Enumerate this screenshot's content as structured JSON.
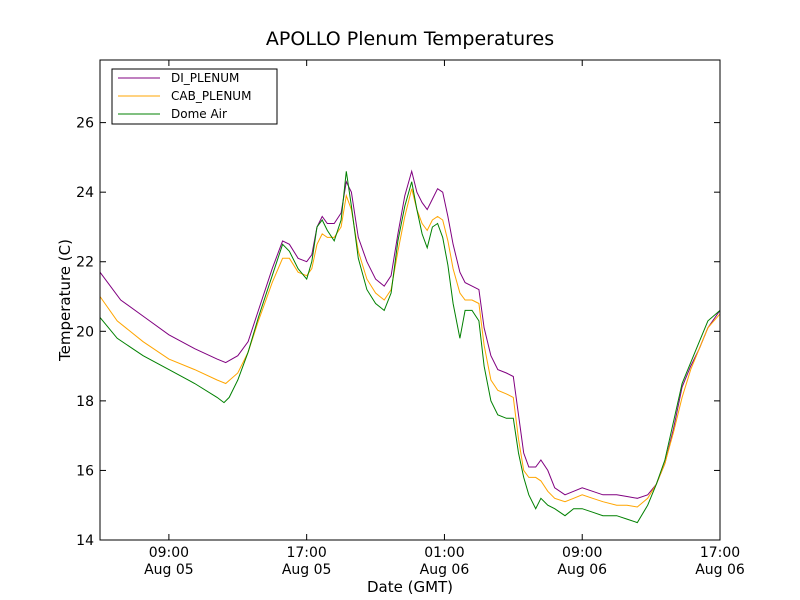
{
  "chart_data": {
    "type": "line",
    "title": "APOLLO Plenum Temperatures",
    "xlabel": "Date (GMT)",
    "ylabel": "Temperature (C)",
    "x_unit": "hours since Aug 05 00:00 GMT",
    "xlim": [
      5.0,
      41.0
    ],
    "ylim": [
      14,
      27.8
    ],
    "yticks": [
      14,
      16,
      18,
      20,
      22,
      24,
      26
    ],
    "xticks": [
      {
        "x": 9,
        "time": "09:00",
        "date": "Aug 05"
      },
      {
        "x": 17,
        "time": "17:00",
        "date": "Aug 05"
      },
      {
        "x": 25,
        "time": "01:00",
        "date": "Aug 06"
      },
      {
        "x": 33,
        "time": "09:00",
        "date": "Aug 06"
      },
      {
        "x": 41,
        "time": "17:00",
        "date": "Aug 06"
      }
    ],
    "legend_position": "top-left",
    "series": [
      {
        "name": "DI_PLENUM",
        "color": "#800080",
        "points": [
          [
            5.0,
            21.7
          ],
          [
            6.2,
            20.9
          ],
          [
            7.6,
            20.4
          ],
          [
            9.0,
            19.9
          ],
          [
            10.5,
            19.5
          ],
          [
            11.8,
            19.2
          ],
          [
            12.3,
            19.1
          ],
          [
            13.0,
            19.3
          ],
          [
            13.6,
            19.7
          ],
          [
            14.2,
            20.6
          ],
          [
            15.0,
            21.8
          ],
          [
            15.6,
            22.6
          ],
          [
            16.0,
            22.5
          ],
          [
            16.5,
            22.1
          ],
          [
            17.0,
            22.0
          ],
          [
            17.3,
            22.2
          ],
          [
            17.6,
            23.0
          ],
          [
            17.9,
            23.3
          ],
          [
            18.2,
            23.1
          ],
          [
            18.6,
            23.1
          ],
          [
            19.0,
            23.4
          ],
          [
            19.3,
            24.3
          ],
          [
            19.6,
            24.0
          ],
          [
            20.0,
            22.7
          ],
          [
            20.5,
            22.0
          ],
          [
            21.0,
            21.5
          ],
          [
            21.5,
            21.3
          ],
          [
            21.9,
            21.6
          ],
          [
            22.3,
            22.8
          ],
          [
            22.7,
            23.9
          ],
          [
            23.1,
            24.6
          ],
          [
            23.4,
            24.0
          ],
          [
            23.7,
            23.7
          ],
          [
            24.0,
            23.5
          ],
          [
            24.3,
            23.8
          ],
          [
            24.6,
            24.1
          ],
          [
            24.9,
            24.0
          ],
          [
            25.2,
            23.3
          ],
          [
            25.5,
            22.5
          ],
          [
            25.9,
            21.7
          ],
          [
            26.2,
            21.4
          ],
          [
            26.6,
            21.3
          ],
          [
            27.0,
            21.2
          ],
          [
            27.3,
            20.1
          ],
          [
            27.7,
            19.3
          ],
          [
            28.1,
            18.9
          ],
          [
            28.6,
            18.8
          ],
          [
            29.0,
            18.7
          ],
          [
            29.3,
            17.6
          ],
          [
            29.6,
            16.5
          ],
          [
            29.9,
            16.1
          ],
          [
            30.3,
            16.1
          ],
          [
            30.6,
            16.3
          ],
          [
            31.0,
            16.0
          ],
          [
            31.4,
            15.5
          ],
          [
            32.0,
            15.3
          ],
          [
            32.5,
            15.4
          ],
          [
            33.0,
            15.5
          ],
          [
            33.6,
            15.4
          ],
          [
            34.2,
            15.3
          ],
          [
            35.0,
            15.3
          ],
          [
            35.6,
            15.25
          ],
          [
            36.2,
            15.2
          ],
          [
            36.8,
            15.3
          ],
          [
            37.3,
            15.6
          ],
          [
            37.8,
            16.2
          ],
          [
            38.3,
            17.2
          ],
          [
            38.8,
            18.4
          ],
          [
            39.3,
            19.0
          ],
          [
            39.8,
            19.5
          ],
          [
            40.3,
            20.1
          ],
          [
            41.0,
            20.6
          ]
        ]
      },
      {
        "name": "CAB_PLENUM",
        "color": "#ffa500",
        "points": [
          [
            5.0,
            21.0
          ],
          [
            6.0,
            20.3
          ],
          [
            7.5,
            19.7
          ],
          [
            9.0,
            19.2
          ],
          [
            10.5,
            18.9
          ],
          [
            11.8,
            18.6
          ],
          [
            12.3,
            18.5
          ],
          [
            13.0,
            18.8
          ],
          [
            13.6,
            19.4
          ],
          [
            14.2,
            20.3
          ],
          [
            15.0,
            21.4
          ],
          [
            15.6,
            22.1
          ],
          [
            16.0,
            22.1
          ],
          [
            16.5,
            21.7
          ],
          [
            17.0,
            21.6
          ],
          [
            17.3,
            21.8
          ],
          [
            17.6,
            22.5
          ],
          [
            17.9,
            22.8
          ],
          [
            18.2,
            22.7
          ],
          [
            18.6,
            22.7
          ],
          [
            19.0,
            23.0
          ],
          [
            19.3,
            23.9
          ],
          [
            19.6,
            23.5
          ],
          [
            20.0,
            22.3
          ],
          [
            20.5,
            21.5
          ],
          [
            21.0,
            21.1
          ],
          [
            21.5,
            20.9
          ],
          [
            21.9,
            21.2
          ],
          [
            22.3,
            22.3
          ],
          [
            22.7,
            23.3
          ],
          [
            23.1,
            24.1
          ],
          [
            23.4,
            23.5
          ],
          [
            23.7,
            23.1
          ],
          [
            24.0,
            22.9
          ],
          [
            24.3,
            23.2
          ],
          [
            24.6,
            23.3
          ],
          [
            24.9,
            23.2
          ],
          [
            25.2,
            22.6
          ],
          [
            25.5,
            21.8
          ],
          [
            25.9,
            21.1
          ],
          [
            26.2,
            20.9
          ],
          [
            26.6,
            20.9
          ],
          [
            27.0,
            20.8
          ],
          [
            27.3,
            19.6
          ],
          [
            27.7,
            18.6
          ],
          [
            28.1,
            18.3
          ],
          [
            28.6,
            18.2
          ],
          [
            29.0,
            18.1
          ],
          [
            29.3,
            16.9
          ],
          [
            29.6,
            16.0
          ],
          [
            29.9,
            15.8
          ],
          [
            30.3,
            15.8
          ],
          [
            30.6,
            15.7
          ],
          [
            31.0,
            15.4
          ],
          [
            31.4,
            15.2
          ],
          [
            32.0,
            15.1
          ],
          [
            32.5,
            15.2
          ],
          [
            33.0,
            15.3
          ],
          [
            33.6,
            15.2
          ],
          [
            34.2,
            15.1
          ],
          [
            35.0,
            15.0
          ],
          [
            35.6,
            15.0
          ],
          [
            36.2,
            14.95
          ],
          [
            36.8,
            15.2
          ],
          [
            37.3,
            15.6
          ],
          [
            37.8,
            16.2
          ],
          [
            38.3,
            17.1
          ],
          [
            38.8,
            18.1
          ],
          [
            39.3,
            18.9
          ],
          [
            39.8,
            19.5
          ],
          [
            40.3,
            20.1
          ],
          [
            41.0,
            20.5
          ]
        ]
      },
      {
        "name": "Dome Air",
        "color": "#008000",
        "points": [
          [
            5.0,
            20.4
          ],
          [
            6.0,
            19.8
          ],
          [
            7.5,
            19.3
          ],
          [
            9.0,
            18.9
          ],
          [
            10.5,
            18.5
          ],
          [
            11.8,
            18.1
          ],
          [
            12.2,
            17.95
          ],
          [
            12.5,
            18.1
          ],
          [
            13.0,
            18.6
          ],
          [
            13.6,
            19.4
          ],
          [
            14.2,
            20.4
          ],
          [
            15.0,
            21.6
          ],
          [
            15.6,
            22.5
          ],
          [
            16.0,
            22.3
          ],
          [
            16.5,
            21.8
          ],
          [
            17.0,
            21.5
          ],
          [
            17.3,
            22.0
          ],
          [
            17.6,
            23.0
          ],
          [
            17.9,
            23.2
          ],
          [
            18.2,
            22.9
          ],
          [
            18.6,
            22.6
          ],
          [
            19.0,
            23.2
          ],
          [
            19.3,
            24.6
          ],
          [
            19.6,
            23.6
          ],
          [
            20.0,
            22.1
          ],
          [
            20.5,
            21.2
          ],
          [
            21.0,
            20.8
          ],
          [
            21.5,
            20.6
          ],
          [
            21.9,
            21.1
          ],
          [
            22.3,
            22.6
          ],
          [
            22.7,
            23.6
          ],
          [
            23.1,
            24.3
          ],
          [
            23.4,
            23.5
          ],
          [
            23.7,
            22.8
          ],
          [
            24.0,
            22.4
          ],
          [
            24.3,
            23.0
          ],
          [
            24.6,
            23.1
          ],
          [
            24.9,
            22.7
          ],
          [
            25.2,
            21.9
          ],
          [
            25.5,
            20.8
          ],
          [
            25.9,
            19.8
          ],
          [
            26.2,
            20.6
          ],
          [
            26.6,
            20.6
          ],
          [
            27.0,
            20.3
          ],
          [
            27.3,
            19.0
          ],
          [
            27.7,
            18.0
          ],
          [
            28.1,
            17.6
          ],
          [
            28.6,
            17.5
          ],
          [
            29.0,
            17.5
          ],
          [
            29.3,
            16.5
          ],
          [
            29.6,
            15.8
          ],
          [
            29.9,
            15.3
          ],
          [
            30.3,
            14.9
          ],
          [
            30.6,
            15.2
          ],
          [
            31.0,
            15.0
          ],
          [
            31.4,
            14.9
          ],
          [
            32.0,
            14.7
          ],
          [
            32.5,
            14.9
          ],
          [
            33.0,
            14.9
          ],
          [
            33.6,
            14.8
          ],
          [
            34.2,
            14.7
          ],
          [
            35.0,
            14.7
          ],
          [
            35.6,
            14.6
          ],
          [
            36.2,
            14.5
          ],
          [
            36.8,
            15.0
          ],
          [
            37.3,
            15.6
          ],
          [
            37.8,
            16.3
          ],
          [
            38.3,
            17.4
          ],
          [
            38.8,
            18.5
          ],
          [
            39.3,
            19.1
          ],
          [
            39.8,
            19.7
          ],
          [
            40.3,
            20.3
          ],
          [
            41.0,
            20.6
          ]
        ]
      }
    ]
  }
}
